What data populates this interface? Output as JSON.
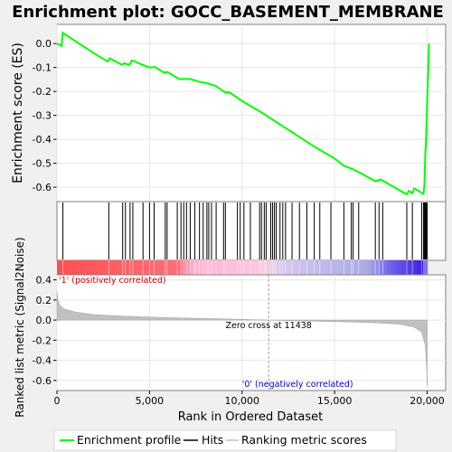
{
  "chart_data": {
    "type": "line",
    "title": "Enrichment plot: GOCC_BASEMENT_MEMBRANE",
    "xlabel": "Rank in Ordered Dataset",
    "ylabel_top": "Enrichment score (ES)",
    "ylabel_bottom": "Ranked list metric (Signal2Noise)",
    "x_range": [
      0,
      21000
    ],
    "x_ticks": [
      0,
      5000,
      10000,
      15000,
      20000
    ],
    "x_tick_labels": [
      "0",
      "5,000",
      "10,000",
      "15,000",
      "20,000"
    ],
    "es_ylim": [
      -0.66,
      0.08
    ],
    "es_ticks": [
      0.0,
      -0.1,
      -0.2,
      -0.3,
      -0.4,
      -0.5,
      -0.6
    ],
    "es_tick_labels": [
      "0.0",
      "-0.1",
      "-0.2",
      "-0.3",
      "-0.4",
      "-0.5",
      "-0.6"
    ],
    "metric_ylim": [
      -0.7,
      0.45
    ],
    "metric_ticks": [
      0.4,
      0.2,
      0.0,
      -0.2,
      -0.4,
      -0.6
    ],
    "metric_tick_labels": [
      "0.4",
      "0.2",
      "0.0",
      "-0.2",
      "-0.4",
      "-0.6"
    ],
    "zero_cross_rank": 11438,
    "zero_cross_label": "Zero cross at 11438",
    "positive_label": "'1' (positively correlated)",
    "negative_label": "'0' (negatively correlated)",
    "n_genes": 20000,
    "es_profile": [
      [
        0,
        0.0
      ],
      [
        250,
        -0.01
      ],
      [
        310,
        0.045
      ],
      [
        800,
        0.02
      ],
      [
        1500,
        -0.015
      ],
      [
        2200,
        -0.05
      ],
      [
        2750,
        -0.075
      ],
      [
        2850,
        -0.062
      ],
      [
        3500,
        -0.088
      ],
      [
        3650,
        -0.082
      ],
      [
        3900,
        -0.09
      ],
      [
        4050,
        -0.07
      ],
      [
        4500,
        -0.085
      ],
      [
        5000,
        -0.1
      ],
      [
        5300,
        -0.098
      ],
      [
        5800,
        -0.122
      ],
      [
        5950,
        -0.118
      ],
      [
        6600,
        -0.148
      ],
      [
        7200,
        -0.148
      ],
      [
        7700,
        -0.16
      ],
      [
        8100,
        -0.165
      ],
      [
        8600,
        -0.178
      ],
      [
        9100,
        -0.205
      ],
      [
        9300,
        -0.203
      ],
      [
        10000,
        -0.24
      ],
      [
        11000,
        -0.285
      ],
      [
        12000,
        -0.335
      ],
      [
        13000,
        -0.385
      ],
      [
        14000,
        -0.435
      ],
      [
        15000,
        -0.48
      ],
      [
        15500,
        -0.51
      ],
      [
        16000,
        -0.525
      ],
      [
        16500,
        -0.545
      ],
      [
        17200,
        -0.575
      ],
      [
        17500,
        -0.568
      ],
      [
        18000,
        -0.59
      ],
      [
        18900,
        -0.63
      ],
      [
        19000,
        -0.615
      ],
      [
        19200,
        -0.625
      ],
      [
        19300,
        -0.605
      ],
      [
        19800,
        -0.628
      ],
      [
        19850,
        -0.59
      ],
      [
        19900,
        -0.46
      ],
      [
        19950,
        -0.38
      ],
      [
        20000,
        -0.24
      ],
      [
        20050,
        -0.12
      ],
      [
        20100,
        0.0
      ]
    ],
    "hits": [
      320,
      2800,
      3550,
      3700,
      3950,
      4100,
      4650,
      5000,
      5250,
      5850,
      5950,
      6500,
      6700,
      6850,
      7000,
      7200,
      7450,
      7700,
      7900,
      8100,
      8200,
      8350,
      8600,
      9000,
      9100,
      9750,
      9900,
      10100,
      10450,
      10950,
      11050,
      11200,
      11300,
      11550,
      11650,
      11750,
      11850,
      12050,
      12200,
      12350,
      12700,
      13100,
      13500,
      13900,
      14200,
      14800,
      15500,
      15900,
      16000,
      16300,
      17200,
      17400,
      17600,
      18900,
      19200,
      19700,
      19800,
      19850,
      19900,
      19950,
      20000
    ],
    "metric_curve": [
      [
        0,
        0.28
      ],
      [
        50,
        0.2
      ],
      [
        150,
        0.15
      ],
      [
        400,
        0.11
      ],
      [
        1000,
        0.08
      ],
      [
        2000,
        0.055
      ],
      [
        3500,
        0.04
      ],
      [
        5000,
        0.03
      ],
      [
        7000,
        0.02
      ],
      [
        9000,
        0.012
      ],
      [
        11438,
        0.0
      ],
      [
        13000,
        -0.008
      ],
      [
        15000,
        -0.015
      ],
      [
        17000,
        -0.025
      ],
      [
        18500,
        -0.04
      ],
      [
        19300,
        -0.07
      ],
      [
        19700,
        -0.12
      ],
      [
        19900,
        -0.25
      ],
      [
        19980,
        -0.5
      ],
      [
        20000,
        -0.65
      ]
    ],
    "colors": {
      "es_line": "#00ff00",
      "hit_line": "#000000",
      "metric_fill": "#c0c0c0",
      "zero_cross_line": "#a0a0a0",
      "positive_text": "#cc0000",
      "negative_text": "#0000cc",
      "panel_border": "#808080",
      "background_outer": "#f0f0f0"
    }
  },
  "legend": {
    "items": [
      "Enrichment profile",
      "Hits",
      "Ranking metric scores"
    ]
  }
}
